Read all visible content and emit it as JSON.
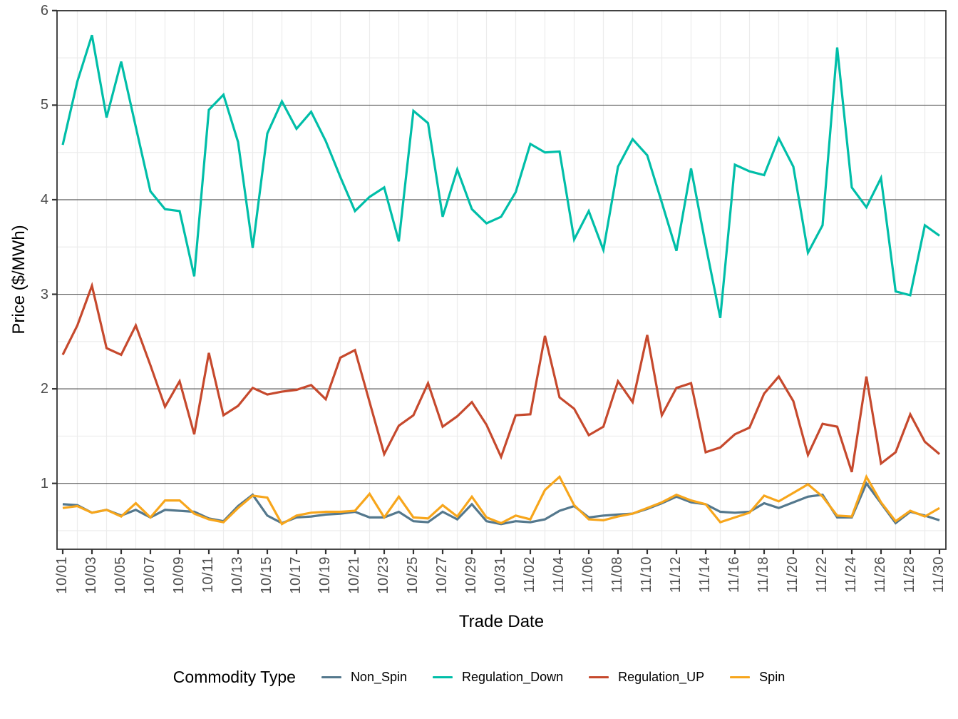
{
  "chart_data": {
    "type": "line",
    "title": "",
    "xlabel": "Trade Date",
    "ylabel": "Price ($/MWh)",
    "legend_title": "Commodity Type",
    "legend_position": "bottom",
    "grid": {
      "major_y": "dark-gray",
      "minor": "light-gray",
      "major_x": "none"
    },
    "ylim": [
      0.3,
      6.0
    ],
    "y_ticks": [
      1,
      2,
      3,
      4,
      5,
      6
    ],
    "x_tick_labels": [
      "10/01",
      "10/03",
      "10/05",
      "10/07",
      "10/09",
      "10/11",
      "10/13",
      "10/15",
      "10/17",
      "10/19",
      "10/21",
      "10/23",
      "10/25",
      "10/27",
      "10/29",
      "10/31",
      "11/02",
      "11/04",
      "11/06",
      "11/08",
      "11/10",
      "11/12",
      "11/14",
      "11/16",
      "11/18",
      "11/20",
      "11/22",
      "11/24",
      "11/26",
      "11/28",
      "11/30"
    ],
    "x": [
      "10/01",
      "10/02",
      "10/03",
      "10/04",
      "10/05",
      "10/06",
      "10/07",
      "10/08",
      "10/09",
      "10/10",
      "10/11",
      "10/12",
      "10/13",
      "10/14",
      "10/15",
      "10/16",
      "10/17",
      "10/18",
      "10/19",
      "10/20",
      "10/21",
      "10/22",
      "10/23",
      "10/24",
      "10/25",
      "10/26",
      "10/27",
      "10/28",
      "10/29",
      "10/30",
      "10/31",
      "11/01",
      "11/02",
      "11/03",
      "11/04",
      "11/05",
      "11/06",
      "11/07",
      "11/08",
      "11/09",
      "11/10",
      "11/11",
      "11/12",
      "11/13",
      "11/14",
      "11/15",
      "11/16",
      "11/17",
      "11/18",
      "11/19",
      "11/20",
      "11/21",
      "11/22",
      "11/23",
      "11/24",
      "11/25",
      "11/26",
      "11/27",
      "11/28",
      "11/29",
      "11/30"
    ],
    "series": [
      {
        "name": "Non_Spin",
        "color": "#54788D",
        "values": [
          0.78,
          0.77,
          0.69,
          0.72,
          0.66,
          0.72,
          0.64,
          0.72,
          0.71,
          0.7,
          0.63,
          0.6,
          0.76,
          0.88,
          0.66,
          0.58,
          0.64,
          0.65,
          0.67,
          0.68,
          0.7,
          0.64,
          0.64,
          0.7,
          0.6,
          0.59,
          0.7,
          0.62,
          0.78,
          0.6,
          0.57,
          0.6,
          0.59,
          0.62,
          0.71,
          0.76,
          0.64,
          0.66,
          0.67,
          0.68,
          0.73,
          0.79,
          0.86,
          0.8,
          0.78,
          0.7,
          0.69,
          0.7,
          0.79,
          0.74,
          0.8,
          0.86,
          0.88,
          0.64,
          0.64,
          1.0,
          0.79,
          0.58,
          0.7,
          0.66,
          0.61
        ]
      },
      {
        "name": "Regulation_Down",
        "color": "#00BEA8",
        "values": [
          4.58,
          5.25,
          5.74,
          4.87,
          5.46,
          4.77,
          4.09,
          3.9,
          3.88,
          3.19,
          4.95,
          5.11,
          4.61,
          3.49,
          4.7,
          5.04,
          4.75,
          4.93,
          4.62,
          4.24,
          3.88,
          4.03,
          4.13,
          3.56,
          4.94,
          4.81,
          3.82,
          4.32,
          3.9,
          3.75,
          3.82,
          4.08,
          4.59,
          4.5,
          4.51,
          3.58,
          3.88,
          3.47,
          4.35,
          4.64,
          4.47,
          3.97,
          3.46,
          4.33,
          3.52,
          2.75,
          4.37,
          4.3,
          4.26,
          4.65,
          4.35,
          3.44,
          3.73,
          5.61,
          4.13,
          3.92,
          4.23,
          3.03,
          2.99,
          3.73,
          3.62
        ]
      },
      {
        "name": "Regulation_UP",
        "color": "#C6492D",
        "values": [
          2.36,
          2.67,
          3.09,
          2.43,
          2.36,
          2.67,
          2.25,
          1.81,
          2.08,
          1.52,
          2.38,
          1.72,
          1.82,
          2.01,
          1.94,
          1.97,
          1.99,
          2.04,
          1.89,
          2.33,
          2.41,
          1.86,
          1.31,
          1.61,
          1.72,
          2.06,
          1.6,
          1.71,
          1.86,
          1.62,
          1.28,
          1.72,
          1.73,
          2.56,
          1.91,
          1.79,
          1.51,
          1.6,
          2.08,
          1.86,
          2.57,
          1.72,
          2.01,
          2.06,
          1.33,
          1.38,
          1.52,
          1.59,
          1.95,
          2.13,
          1.87,
          1.3,
          1.63,
          1.6,
          1.12,
          2.13,
          1.21,
          1.33,
          1.73,
          1.44,
          1.31
        ]
      },
      {
        "name": "Spin",
        "color": "#F7A61C",
        "values": [
          0.74,
          0.76,
          0.69,
          0.72,
          0.65,
          0.79,
          0.64,
          0.82,
          0.82,
          0.68,
          0.62,
          0.59,
          0.74,
          0.87,
          0.85,
          0.57,
          0.66,
          0.69,
          0.7,
          0.7,
          0.71,
          0.89,
          0.64,
          0.86,
          0.64,
          0.63,
          0.77,
          0.65,
          0.86,
          0.64,
          0.58,
          0.66,
          0.62,
          0.93,
          1.07,
          0.77,
          0.62,
          0.61,
          0.65,
          0.68,
          0.74,
          0.8,
          0.88,
          0.82,
          0.78,
          0.59,
          0.64,
          0.69,
          0.87,
          0.81,
          0.9,
          0.99,
          0.86,
          0.66,
          0.65,
          1.07,
          0.8,
          0.6,
          0.71,
          0.65,
          0.74
        ]
      }
    ]
  }
}
